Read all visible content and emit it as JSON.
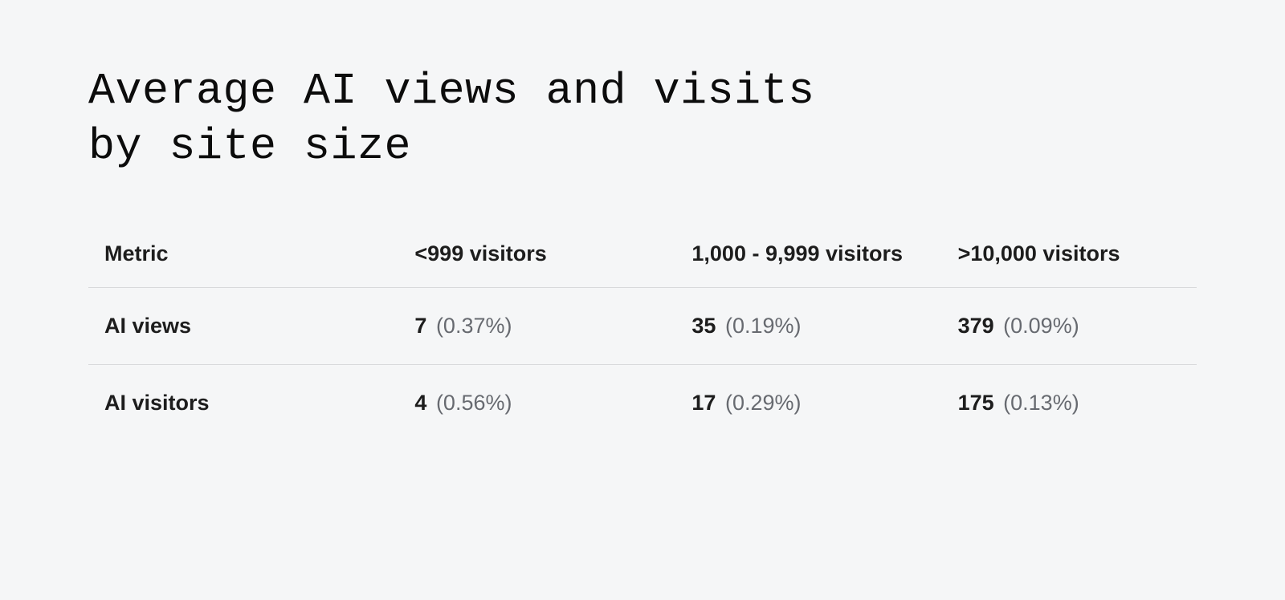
{
  "title_line1": "Average AI views and visits",
  "title_line2": "by site size",
  "table": {
    "type": "table",
    "background_color": "#f5f6f7",
    "border_color": "#d8d9db",
    "header_fontsize": 27,
    "cell_fontsize": 27,
    "text_color": "#1d1d1d",
    "secondary_text_color": "#676a70",
    "columns": [
      "Metric",
      "<999 visitors",
      "1,000 - 9,999 visitors",
      ">10,000 visitors"
    ],
    "rows": [
      {
        "metric": "AI views",
        "cells": [
          {
            "value": "7",
            "pct": "(0.37%)"
          },
          {
            "value": "35",
            "pct": "(0.19%)"
          },
          {
            "value": "379",
            "pct": "(0.09%)"
          }
        ]
      },
      {
        "metric": "AI visitors",
        "cells": [
          {
            "value": "4",
            "pct": "(0.56%)"
          },
          {
            "value": "17",
            "pct": "(0.29%)"
          },
          {
            "value": "175",
            "pct": "(0.13%)"
          }
        ]
      }
    ]
  }
}
